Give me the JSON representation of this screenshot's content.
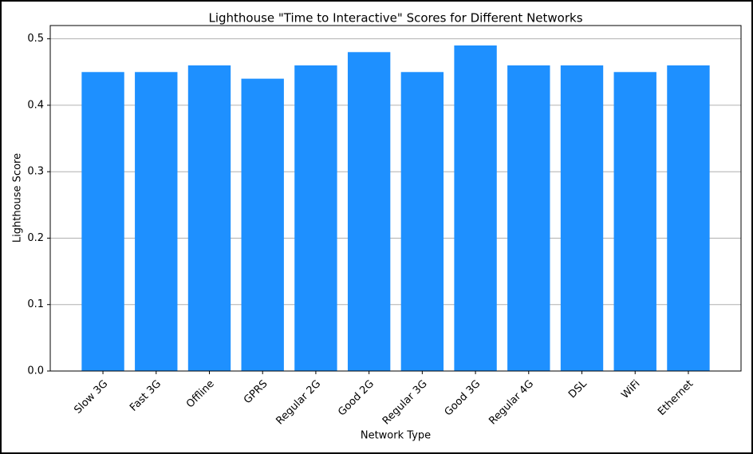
{
  "chart_data": {
    "type": "bar",
    "title": "Lighthouse \"Time to Interactive\" Scores for Different Networks",
    "x_label": "Network Type",
    "y_label": "Lighthouse Score",
    "categories": [
      "Slow 3G",
      "Fast 3G",
      "Offline",
      "GPRS",
      "Regular 2G",
      "Good 2G",
      "Regular 3G",
      "Good 3G",
      "Regular 4G",
      "DSL",
      "WiFi",
      "Ethernet"
    ],
    "values": [
      0.45,
      0.45,
      0.46,
      0.44,
      0.46,
      0.48,
      0.45,
      0.49,
      0.46,
      0.46,
      0.45,
      0.46
    ],
    "color": "#1e90ff",
    "ylim": [
      0,
      0.52
    ],
    "yticks": [
      {
        "value": 0,
        "label": "0.0"
      },
      0.1,
      0.2,
      0.3,
      0.4,
      0.5
    ],
    "grid": true
  }
}
